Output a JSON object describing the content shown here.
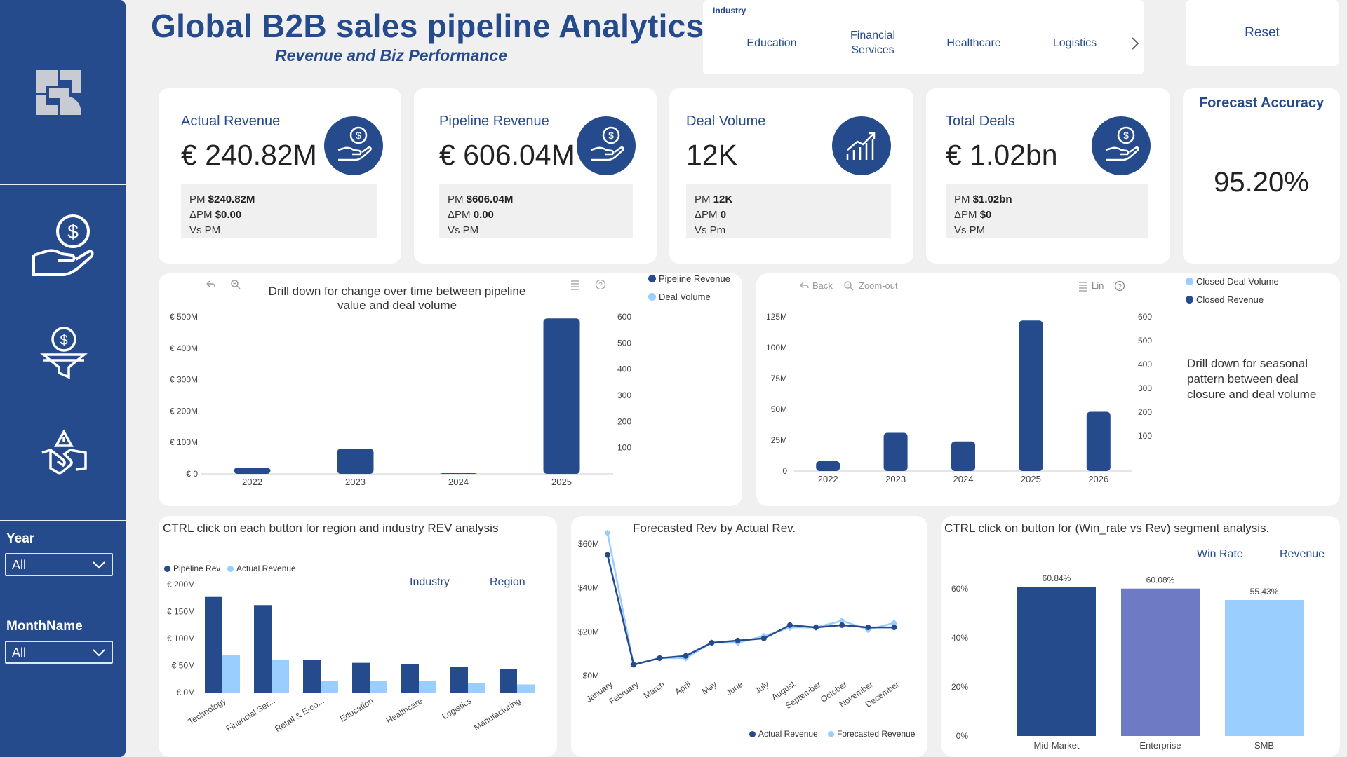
{
  "header": {
    "title": "Global B2B sales pipeline Analytics",
    "subtitle": "Revenue and Biz Performance",
    "reset_label": "Reset"
  },
  "industry_slicer": {
    "label": "Industry",
    "options": [
      "Education",
      "Financial Services",
      "Healthcare",
      "Logistics"
    ]
  },
  "sidebar": {
    "year_label": "Year",
    "year_value": "All",
    "month_label": "MonthName",
    "month_value": "All"
  },
  "kpis": [
    {
      "title": "Actual Revenue",
      "value": "€ 240.82M",
      "pm_label": "PM",
      "pm_value": "$240.82M",
      "dpm_label": "ΔPM",
      "dpm_value": "$0.00",
      "vs": "Vs PM",
      "icon": "hand-dollar-icon"
    },
    {
      "title": "Pipeline Revenue",
      "value": "€ 606.04M",
      "pm_label": "PM",
      "pm_value": "$606.04M",
      "dpm_label": "ΔPM",
      "dpm_value": "0.00",
      "vs": "Vs PM",
      "icon": "hand-dollar-icon"
    },
    {
      "title": "Deal Volume",
      "value": "12K",
      "pm_label": "PM",
      "pm_value": "12K",
      "dpm_label": "ΔPM",
      "dpm_value": "0",
      "vs": "Vs Pm",
      "icon": "trend-up-icon"
    },
    {
      "title": "Total Deals",
      "value": "€ 1.02bn",
      "pm_label": "PM",
      "pm_value": "$1.02bn",
      "dpm_label": "ΔPM",
      "dpm_value": "$0",
      "vs": "Vs PM",
      "icon": "hand-dollar-icon"
    }
  ],
  "forecast_accuracy": {
    "title": "Forecast Accuracy",
    "value": "95.20%"
  },
  "colors": {
    "navy": "#264b8d",
    "light_blue": "#99ceff",
    "purple": "#6f7ac4",
    "accent": "#264b8d"
  },
  "chart_data": [
    {
      "id": "pipeline_vs_volume",
      "type": "bar",
      "title": "Drill down for change over time between pipeline value and deal volume",
      "categories": [
        "2022",
        "2023",
        "2024",
        "2025"
      ],
      "series": [
        {
          "name": "Pipeline Revenue",
          "values": [
            20,
            80,
            1,
            495
          ],
          "unit": "€M"
        },
        {
          "name": "Deal Volume",
          "values": [
            0,
            0,
            0,
            0
          ]
        }
      ],
      "y_ticks": [
        "€ 0",
        "€ 100M",
        "€ 200M",
        "€ 300M",
        "€ 400M",
        "€ 500M"
      ],
      "ylim": [
        0,
        500
      ],
      "y2_ticks": [
        "100",
        "200",
        "300",
        "400",
        "500",
        "600"
      ],
      "y2lim": [
        0,
        600
      ]
    },
    {
      "id": "seasonal_closure",
      "type": "bar",
      "categories": [
        "2022",
        "2023",
        "2024",
        "2025",
        "2026"
      ],
      "series": [
        {
          "name": "Closed Deal Volume",
          "values": [
            0,
            0,
            0,
            0,
            0
          ]
        },
        {
          "name": "Closed Revenue",
          "values": [
            8,
            31,
            24,
            122,
            48
          ],
          "unit": "M"
        }
      ],
      "y_ticks": [
        "0",
        "25M",
        "50M",
        "75M",
        "100M",
        "125M"
      ],
      "ylim": [
        0,
        125
      ],
      "y2_ticks": [
        "100",
        "200",
        "300",
        "400",
        "500",
        "600"
      ],
      "y2lim": [
        0,
        600
      ],
      "toolbar": {
        "back": "Back",
        "zoom": "Zoom-out",
        "lin": "Lin"
      },
      "note": "Drill down for seasonal pattern between deal closure and deal volume"
    },
    {
      "id": "industry_rev",
      "type": "bar",
      "title": "CTRL click on each button for region and industry REV analysis",
      "categories": [
        "Technology",
        "Financial Ser...",
        "Retail & E-co...",
        "Education",
        "Healthcare",
        "Logistics",
        "Manufacturing"
      ],
      "series": [
        {
          "name": "Pipeline Rev",
          "values": [
            177,
            162,
            60,
            55,
            52,
            48,
            43
          ],
          "unit": "€M"
        },
        {
          "name": "Actual Revenue",
          "values": [
            70,
            61,
            22,
            22,
            21,
            18,
            15
          ],
          "unit": "€M"
        }
      ],
      "y_ticks": [
        "€ 0M",
        "€ 50M",
        "€ 100M",
        "€ 150M",
        "€ 200M"
      ],
      "ylim": [
        0,
        200
      ],
      "buttons": [
        "Industry",
        "Region"
      ]
    },
    {
      "id": "forecast_vs_actual",
      "type": "line",
      "title": "Forecasted Rev by Actual Rev.",
      "categories": [
        "January",
        "February",
        "March",
        "April",
        "May",
        "June",
        "July",
        "August",
        "September",
        "October",
        "November",
        "December"
      ],
      "series": [
        {
          "name": "Actual Revenue",
          "values": [
            55,
            5,
            8,
            9,
            15,
            16,
            17,
            23,
            22,
            23,
            22,
            22
          ],
          "unit": "$M"
        },
        {
          "name": "Forecasted Revenue",
          "values": [
            65,
            5,
            8,
            8,
            15,
            15,
            18,
            22,
            22,
            25,
            21,
            24
          ],
          "unit": "$M"
        }
      ],
      "y_ticks": [
        "$0M",
        "$20M",
        "$40M",
        "$60M"
      ],
      "ylim": [
        0,
        60
      ]
    },
    {
      "id": "segment_winrate",
      "type": "bar",
      "title": "CTRL click on button for (Win_rate vs Rev) segment analysis.",
      "categories": [
        "Mid-Market",
        "Enterprise",
        "SMB"
      ],
      "values": [
        60.84,
        60.08,
        55.43
      ],
      "data_labels": [
        "60.84%",
        "60.08%",
        "55.43%"
      ],
      "bar_colors": [
        "#264b8d",
        "#6f7ac4",
        "#99ceff"
      ],
      "y_ticks": [
        "0%",
        "20%",
        "40%",
        "60%"
      ],
      "ylim": [
        0,
        60
      ],
      "buttons": [
        "Win Rate",
        "Revenue"
      ]
    }
  ]
}
